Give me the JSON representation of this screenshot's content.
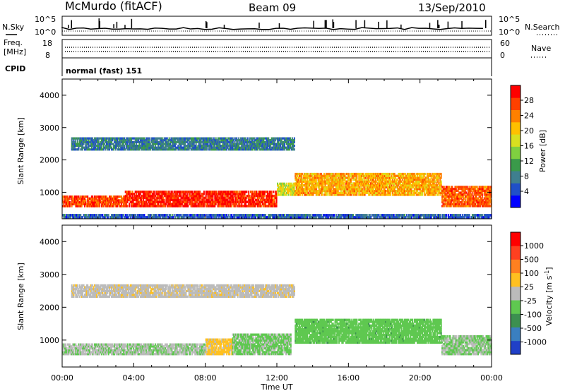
{
  "header": {
    "station": "McMurdo (fitACF)",
    "beam": "Beam 09",
    "date": "13/Sep/2010"
  },
  "status_panels": {
    "nsky_label": "N.Sky",
    "nsearch_label": "N.Search",
    "noise_ticks": [
      "10^5",
      "10^0"
    ],
    "noise_ticks_right": [
      "10^5",
      "10^0"
    ],
    "freq_label_line1": "Freq.",
    "freq_label_line2": "[MHz]",
    "freq_ticks": [
      "18",
      "8"
    ],
    "nave_label": "Nave",
    "nave_ticks": [
      "60",
      "0"
    ],
    "cpid_label": "CPID",
    "cpid_value": "normal (fast) 151"
  },
  "chart_data": [
    {
      "type": "heatmap",
      "name": "power",
      "ylabel": "Slant Range [km]",
      "ylim": [
        180,
        4500
      ],
      "yticks": [
        1000,
        2000,
        3000,
        4000
      ],
      "xlabel": "",
      "xlim_hours": [
        0,
        24
      ],
      "colorbar": {
        "label": "Power [dB]",
        "range": [
          0,
          32
        ],
        "ticks": [
          "28",
          "24",
          "20",
          "16",
          "12",
          "8",
          "4"
        ],
        "colors": [
          "#0000ff",
          "#2050c8",
          "#3f7f8f",
          "#3a9a4a",
          "#7fd040",
          "#d8e020",
          "#ffc000",
          "#ff8000",
          "#ff4000",
          "#ff0000"
        ]
      },
      "layers": [
        {
          "t_start": 0.0,
          "t_end": 3.5,
          "r_min": 550,
          "r_max": 900,
          "level": 27
        },
        {
          "t_start": 3.5,
          "t_end": 12.0,
          "r_min": 550,
          "r_max": 1050,
          "level": 29
        },
        {
          "t_start": 12.0,
          "t_end": 13.0,
          "r_min": 900,
          "r_max": 1300,
          "level": 18
        },
        {
          "t_start": 13.0,
          "t_end": 21.2,
          "r_min": 900,
          "r_max": 1600,
          "level": 22
        },
        {
          "t_start": 21.2,
          "t_end": 24.0,
          "r_min": 550,
          "r_max": 1200,
          "level": 26
        },
        {
          "t_start": 0.5,
          "t_end": 13.0,
          "r_min": 2300,
          "r_max": 2700,
          "level": 8
        },
        {
          "t_start": 0.0,
          "t_end": 24.0,
          "r_min": 200,
          "r_max": 330,
          "level": 6
        }
      ]
    },
    {
      "type": "heatmap",
      "name": "velocity",
      "ylabel": "Slant Range [km]",
      "ylim": [
        180,
        4500
      ],
      "yticks": [
        1000,
        2000,
        3000,
        4000
      ],
      "xlabel": "Time UT",
      "xticks": [
        "00:00",
        "04:00",
        "08:00",
        "12:00",
        "16:00",
        "20:00",
        "00:00"
      ],
      "xlim_hours": [
        0,
        24
      ],
      "colorbar": {
        "label": "Velocity [m s",
        "label_sup": "-1",
        "label_end": "]",
        "range": [
          -1250,
          1250
        ],
        "ticks": [
          "1000",
          "500",
          "100",
          "25",
          "-25",
          "-100",
          "-500",
          "-1000"
        ],
        "colors": [
          "#2040c8",
          "#3a7fc0",
          "#3c9050",
          "#5fc850",
          "#bbbbbb",
          "#ffc020",
          "#ff8020",
          "#ff4020",
          "#ff0000"
        ]
      },
      "layers": [
        {
          "t_start": 0.0,
          "t_end": 8.0,
          "r_min": 550,
          "r_max": 900,
          "level": -100
        },
        {
          "t_start": 8.0,
          "t_end": 9.5,
          "r_min": 550,
          "r_max": 1050,
          "level": 200
        },
        {
          "t_start": 9.5,
          "t_end": 12.8,
          "r_min": 550,
          "r_max": 1200,
          "level": -200
        },
        {
          "t_start": 13.0,
          "t_end": 21.2,
          "r_min": 900,
          "r_max": 1650,
          "level": -300
        },
        {
          "t_start": 21.2,
          "t_end": 24.0,
          "r_min": 550,
          "r_max": 1150,
          "level": -150
        },
        {
          "t_start": 0.5,
          "t_end": 13.0,
          "r_min": 2300,
          "r_max": 2700,
          "level": 50
        }
      ]
    }
  ]
}
